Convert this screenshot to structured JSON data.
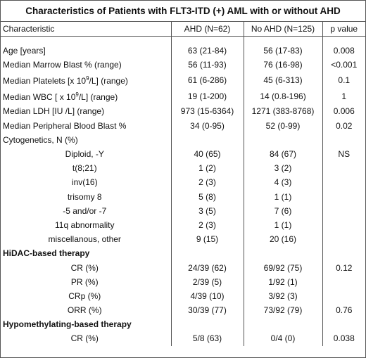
{
  "title": "Characteristics of Patients with FLT3-ITD (+) AML with or without AHD",
  "header": {
    "characteristic": "Characteristic",
    "ahd": "AHD (N=62)",
    "noahd": "No AHD (N=125)",
    "pvalue": "p value"
  },
  "rows": [
    {
      "label": "Age [years]",
      "ahd": "63 (21-84)",
      "noahd": "56 (17-83)",
      "p": "0.008"
    },
    {
      "label": "Median Marrow Blast % (range)",
      "ahd": "56 (11-93)",
      "noahd": "76 (16-98)",
      "p": "<0.001"
    },
    {
      "label_pre": "Median Platelets  [x 10",
      "label_sup": "9",
      "label_post": "/L] (range)",
      "ahd": "61 (6-286)",
      "noahd": "45 (6-313)",
      "p": "0.1"
    },
    {
      "label_pre": "Median WBC [ x 10",
      "label_sup": "9",
      "label_post": "/L] (range)",
      "ahd": "19 (1-200)",
      "noahd": "14 (0.8-196)",
      "p": "1"
    },
    {
      "label": "Median LDH [IU /L] (range)",
      "ahd": "973 (15-6364)",
      "noahd": "1271 (383-8768)",
      "p": "0.006"
    },
    {
      "label": "Median Peripheral Blood Blast %",
      "ahd": "34 (0-95)",
      "noahd": "52 (0-99)",
      "p": "0.02"
    },
    {
      "label": "Cytogenetics, N (%)",
      "ahd": "",
      "noahd": "",
      "p": ""
    },
    {
      "label": "Diploid, -Y",
      "ahd": "40 (65)",
      "noahd": "84 (67)",
      "p": "NS"
    },
    {
      "label": "t(8;21)",
      "ahd": "1 (2)",
      "noahd": "3 (2)",
      "p": ""
    },
    {
      "label": "inv(16)",
      "ahd": "2 (3)",
      "noahd": "4 (3)",
      "p": ""
    },
    {
      "label": "trisomy 8",
      "ahd": "5 (8)",
      "noahd": "1 (1)",
      "p": ""
    },
    {
      "label": "-5 and/or -7",
      "ahd": "3 (5)",
      "noahd": "7 (6)",
      "p": ""
    },
    {
      "label": "11q abnormality",
      "ahd": "2 (3)",
      "noahd": "1 (1)",
      "p": ""
    },
    {
      "label": "miscellanous, other",
      "ahd": "9 (15)",
      "noahd": "20 (16)",
      "p": ""
    },
    {
      "label": "HiDAC-based therapy"
    },
    {
      "label": "CR (%)",
      "ahd": "24/39 (62)",
      "noahd": "69/92 (75)",
      "p": "0.12"
    },
    {
      "label": "PR (%)",
      "ahd": "2/39 (5)",
      "noahd": "1/92 (1)",
      "p": ""
    },
    {
      "label": "CRp (%)",
      "ahd": "4/39 (10)",
      "noahd": "3/92 (3)",
      "p": ""
    },
    {
      "label": "ORR (%)",
      "ahd": "30/39 (77)",
      "noahd": "73/92 (79)",
      "p": "0.76"
    },
    {
      "label": "Hypomethylating-based therapy"
    },
    {
      "label": "CR (%)",
      "ahd": "5/8 (63)",
      "noahd": "0/4 (0)",
      "p": "0.038"
    }
  ]
}
